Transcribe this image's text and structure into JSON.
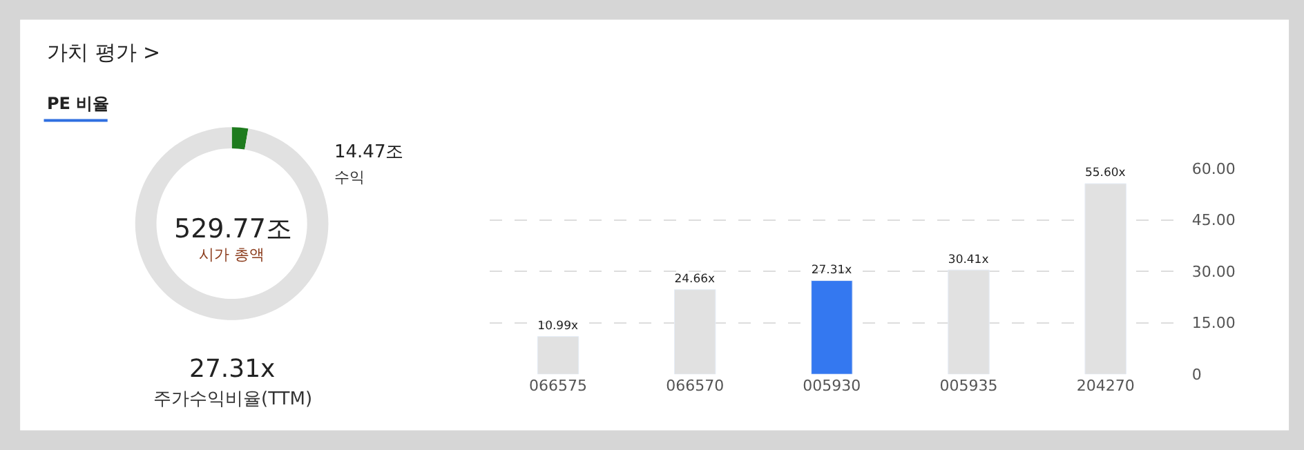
{
  "chart_data": [
    {
      "type": "donut",
      "title": "가치 평가 >",
      "subtitle": "PE 비율",
      "categories": [
        null,
        null
      ],
      "values": [
        2.73,
        97.27
      ],
      "colors": [
        "#1e7b1e",
        "#e1e1e1"
      ],
      "annotations": [
        "14.47조",
        "수익",
        "529.77조",
        "시가 총액",
        "27.31x",
        "주가수익비율(TTM)"
      ]
    },
    {
      "type": "bar",
      "categories": [
        "066575",
        "066570",
        "005930",
        "005935",
        "204270"
      ],
      "values": [
        10.99,
        24.66,
        27.31,
        30.41,
        55.6
      ],
      "colors": [
        "#e1e1e1",
        "#e1e1e1",
        "#3478f0",
        "#e1e1e1",
        "#e1e1e1"
      ],
      "value_labels": [
        "10.99x",
        "24.66x",
        "27.31x",
        "30.41x",
        "55.60x"
      ],
      "ylim": [
        0,
        60
      ],
      "yticks": [
        {
          "value": 0,
          "label": "0"
        },
        {
          "value": 15,
          "label": "15.00"
        },
        {
          "value": 30,
          "label": "30.00"
        },
        {
          "value": 45,
          "label": "45.00"
        },
        {
          "value": 60,
          "label": "60.00"
        }
      ],
      "grid": "y"
    }
  ]
}
